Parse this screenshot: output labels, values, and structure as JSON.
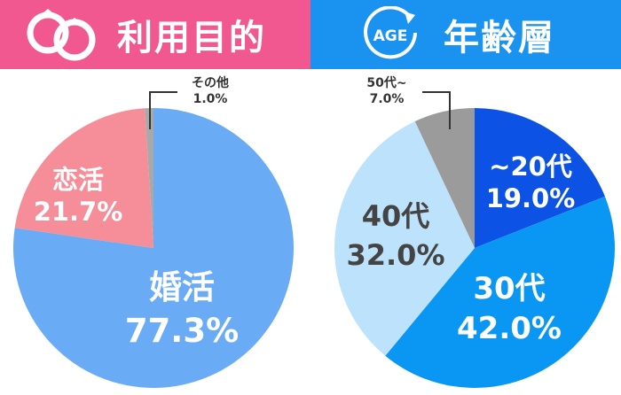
{
  "charts": {
    "purpose": {
      "title": "利用目的",
      "icon": "wedding-rings-icon"
    },
    "age": {
      "title": "年齢層",
      "icon": "age-cycle-icon",
      "icon_text": "AGE"
    }
  },
  "colors": {
    "header_pink": "#f0588f",
    "header_blue": "#1a93f0",
    "marriage": "#6aabf5",
    "dating": "#f58e98",
    "other": "#a9a9a9",
    "under20": "#0b52e5",
    "thirties": "#0a97f3",
    "forties": "#bde2fb",
    "fifties": "#9b9b9b"
  },
  "chart_data": [
    {
      "type": "pie",
      "title": "利用目的",
      "slices": [
        {
          "key": "marriage",
          "name": "婚活",
          "value": 77.3,
          "label": "77.3%"
        },
        {
          "key": "dating",
          "name": "恋活",
          "value": 21.7,
          "label": "21.7%"
        },
        {
          "key": "other",
          "name": "その他",
          "value": 1.0,
          "label": "1.0%"
        }
      ]
    },
    {
      "type": "pie",
      "title": "年齢層",
      "slices": [
        {
          "key": "under20",
          "name": "~20代",
          "value": 19.0,
          "label": "19.0%"
        },
        {
          "key": "thirties",
          "name": "30代",
          "value": 42.0,
          "label": "42.0%"
        },
        {
          "key": "forties",
          "name": "40代",
          "value": 32.0,
          "label": "32.0%"
        },
        {
          "key": "fifties",
          "name": "50代~",
          "value": 7.0,
          "label": "7.0%"
        }
      ]
    }
  ]
}
